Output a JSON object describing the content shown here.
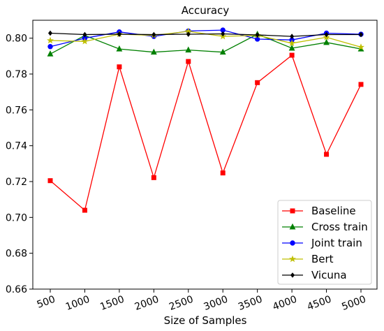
{
  "chart_data": {
    "type": "line",
    "title": "Accuracy",
    "xlabel": "Size of Samples",
    "ylabel": "",
    "x": [
      "500",
      "1000",
      "1500",
      "2000",
      "2500",
      "3000",
      "3500",
      "4000",
      "4500",
      "5000"
    ],
    "ylim": [
      0.66,
      0.81
    ],
    "yticks": [
      "0.66",
      "0.68",
      "0.70",
      "0.72",
      "0.74",
      "0.76",
      "0.78",
      "0.80"
    ],
    "grid": false,
    "legend_position": "lower-right",
    "series": [
      {
        "name": "Baseline",
        "color": "#ff0000",
        "marker": "square",
        "values": [
          0.7205,
          0.704,
          0.784,
          0.7222,
          0.787,
          0.7248,
          0.7752,
          0.7905,
          0.7352,
          0.7742
        ]
      },
      {
        "name": "Cross train",
        "color": "#008000",
        "marker": "triangle",
        "values": [
          0.7912,
          0.8015,
          0.794,
          0.7922,
          0.7934,
          0.7922,
          0.8022,
          0.7944,
          0.7976,
          0.794
        ]
      },
      {
        "name": "Joint train",
        "color": "#0000ff",
        "marker": "circle",
        "values": [
          0.7953,
          0.8,
          0.8035,
          0.801,
          0.804,
          0.8045,
          0.7995,
          0.799,
          0.8028,
          0.8022
        ]
      },
      {
        "name": "Bert",
        "color": "#bfbf00",
        "marker": "star",
        "values": [
          0.7987,
          0.7982,
          0.8022,
          0.8016,
          0.8038,
          0.801,
          0.8016,
          0.7972,
          0.8005,
          0.795
        ]
      },
      {
        "name": "Vicuna",
        "color": "#000000",
        "marker": "diamond",
        "values": [
          0.8028,
          0.802,
          0.8022,
          0.802,
          0.8022,
          0.8024,
          0.8018,
          0.801,
          0.802,
          0.802
        ]
      }
    ]
  }
}
